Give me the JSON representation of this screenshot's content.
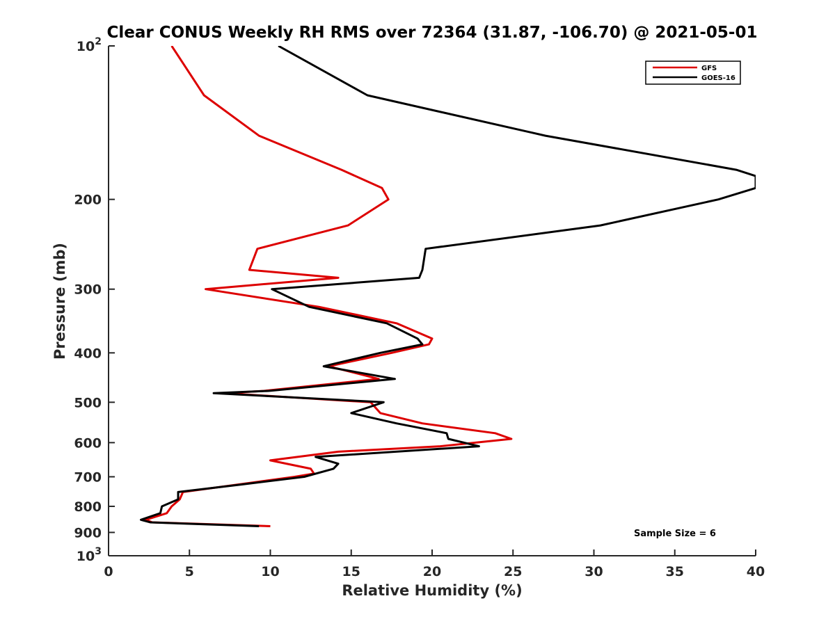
{
  "chart_data": {
    "type": "line",
    "title": "Clear CONUS Weekly RH RMS over 72364 (31.87, -106.70) @ 2021-05-01",
    "xlabel": "Relative Humidity (%)",
    "ylabel": "Pressure (mb)",
    "xlim": [
      0,
      40
    ],
    "ylim": [
      100,
      1000
    ],
    "yscale": "log",
    "y_reversed": true,
    "xticks": [
      0,
      5,
      10,
      15,
      20,
      25,
      30,
      35,
      40
    ],
    "yticks": [
      {
        "value": 100,
        "base": "10",
        "exp": "2"
      },
      {
        "value": 200,
        "label": "200"
      },
      {
        "value": 300,
        "label": "300"
      },
      {
        "value": 400,
        "label": "400"
      },
      {
        "value": 500,
        "label": "500"
      },
      {
        "value": 600,
        "label": "600"
      },
      {
        "value": 700,
        "label": "700"
      },
      {
        "value": 800,
        "label": "800"
      },
      {
        "value": 900,
        "label": "900"
      },
      {
        "value": 1000,
        "base": "10",
        "exp": "3"
      }
    ],
    "grid": false,
    "legend_position": "top-right",
    "series": [
      {
        "name": "GFS",
        "color": "#dd0000",
        "points": [
          [
            3.9,
            100
          ],
          [
            5.9,
            125
          ],
          [
            9.3,
            150
          ],
          [
            14.4,
            175
          ],
          [
            16.9,
            190
          ],
          [
            17.3,
            200
          ],
          [
            14.8,
            225
          ],
          [
            9.2,
            250
          ],
          [
            8.7,
            275
          ],
          [
            14.2,
            285
          ],
          [
            6.0,
            300
          ],
          [
            13.0,
            325
          ],
          [
            17.8,
            350
          ],
          [
            20.0,
            375
          ],
          [
            19.8,
            385
          ],
          [
            17.5,
            400
          ],
          [
            13.6,
            425
          ],
          [
            16.7,
            450
          ],
          [
            9.6,
            475
          ],
          [
            7.2,
            480
          ],
          [
            16.2,
            500
          ],
          [
            16.8,
            525
          ],
          [
            19.4,
            550
          ],
          [
            23.9,
            575
          ],
          [
            24.9,
            590
          ],
          [
            20.5,
            610
          ],
          [
            14.2,
            625
          ],
          [
            10.0,
            650
          ],
          [
            12.5,
            675
          ],
          [
            12.7,
            690
          ],
          [
            11.5,
            700
          ],
          [
            8.0,
            725
          ],
          [
            4.6,
            750
          ],
          [
            4.4,
            775
          ],
          [
            3.9,
            800
          ],
          [
            3.6,
            825
          ],
          [
            2.3,
            850
          ],
          [
            2.7,
            860
          ],
          [
            10.0,
            875
          ]
        ]
      },
      {
        "name": "GOES-16",
        "color": "#000000",
        "points": [
          [
            10.5,
            100
          ],
          [
            16.0,
            125
          ],
          [
            27.0,
            150
          ],
          [
            38.8,
            175
          ],
          [
            40.0,
            180
          ],
          [
            40.0,
            190
          ],
          [
            37.7,
            200
          ],
          [
            30.4,
            225
          ],
          [
            19.6,
            250
          ],
          [
            19.4,
            275
          ],
          [
            19.2,
            285
          ],
          [
            10.1,
            300
          ],
          [
            12.4,
            325
          ],
          [
            17.2,
            350
          ],
          [
            19.1,
            375
          ],
          [
            19.4,
            385
          ],
          [
            16.8,
            400
          ],
          [
            13.3,
            425
          ],
          [
            17.7,
            450
          ],
          [
            9.9,
            475
          ],
          [
            6.5,
            480
          ],
          [
            17.0,
            500
          ],
          [
            15.0,
            525
          ],
          [
            17.8,
            550
          ],
          [
            20.9,
            575
          ],
          [
            21.0,
            590
          ],
          [
            22.9,
            610
          ],
          [
            12.8,
            640
          ],
          [
            14.2,
            660
          ],
          [
            13.9,
            675
          ],
          [
            12.1,
            700
          ],
          [
            8.2,
            725
          ],
          [
            4.3,
            750
          ],
          [
            4.3,
            775
          ],
          [
            3.3,
            800
          ],
          [
            3.2,
            825
          ],
          [
            2.0,
            850
          ],
          [
            2.6,
            860
          ],
          [
            9.3,
            875
          ]
        ]
      }
    ],
    "annotations": [
      {
        "text": "Sample Size = 6",
        "position": "bottom-right"
      }
    ]
  }
}
